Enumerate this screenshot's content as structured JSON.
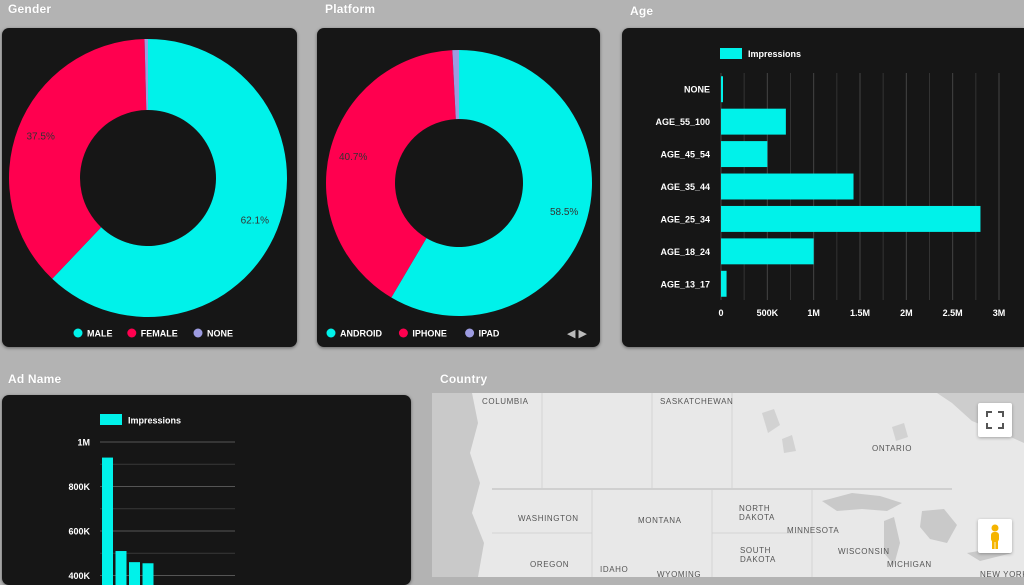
{
  "sections": {
    "gender": "Gender",
    "platform": "Platform",
    "age": "Age",
    "ad_name": "Ad Name",
    "country": "Country"
  },
  "colors": {
    "cyan": "#00f2ea",
    "pink": "#ff004f",
    "lavender": "#9c9be0",
    "card": "#161616"
  },
  "chart_data": [
    {
      "id": "gender",
      "type": "pie",
      "donut": true,
      "labels": [
        "MALE",
        "FEMALE",
        "NONE"
      ],
      "values": [
        62.1,
        37.5,
        0.4
      ],
      "data_labels": [
        "62.1%",
        "37.5%",
        ""
      ],
      "colors": [
        "#00f2ea",
        "#ff004f",
        "#9c9be0"
      ],
      "legend": "bottom"
    },
    {
      "id": "platform",
      "type": "pie",
      "donut": true,
      "labels": [
        "ANDROID",
        "IPHONE",
        "IPAD"
      ],
      "values": [
        58.5,
        40.7,
        0.8
      ],
      "data_labels": [
        "58.5%",
        "40.7%",
        ""
      ],
      "colors": [
        "#00f2ea",
        "#ff004f",
        "#9c9be0"
      ],
      "legend": "bottom",
      "pager": "◀ ▶"
    },
    {
      "id": "age",
      "type": "bar",
      "orientation": "horizontal",
      "categories": [
        "NONE",
        "AGE_55_100",
        "AGE_45_54",
        "AGE_35_44",
        "AGE_25_34",
        "AGE_18_24",
        "AGE_13_17"
      ],
      "series": [
        {
          "name": "Impressions",
          "values": [
            15000,
            700000,
            500000,
            1430000,
            2800000,
            1000000,
            60000
          ]
        }
      ],
      "xlim": [
        0,
        3000000
      ],
      "ticks": [
        0,
        500000,
        1000000,
        1500000,
        2000000,
        2500000,
        3000000
      ],
      "tick_labels": [
        "0",
        "500K",
        "1M",
        "1.5M",
        "2M",
        "2.5M",
        "3M"
      ],
      "grid": true,
      "legend": "top"
    },
    {
      "id": "ad_name",
      "type": "bar",
      "orientation": "vertical",
      "series": [
        {
          "name": "Impressions",
          "values": [
            930000,
            510000,
            460000,
            455000
          ]
        }
      ],
      "ylim": [
        0,
        1000000
      ],
      "ticks": [
        400000,
        600000,
        800000,
        1000000
      ],
      "tick_labels": [
        "400K",
        "600K",
        "800K",
        "1M"
      ],
      "grid": true,
      "legend": "top"
    }
  ],
  "map": {
    "labels": [
      {
        "text": "COLUMBIA"
      },
      {
        "text": "SASKATCHEWAN"
      },
      {
        "text": "ONTARIO"
      },
      {
        "text": "WASHINGTON"
      },
      {
        "text": "MONTANA"
      },
      {
        "text": "NORTH"
      },
      {
        "text": "DAKOTA"
      },
      {
        "text": "MINNESOTA"
      },
      {
        "text": "SOUTH"
      },
      {
        "text": "DAKOTA"
      },
      {
        "text": "WISCONSIN"
      },
      {
        "text": "MICHIGAN"
      },
      {
        "text": "OREGON"
      },
      {
        "text": "IDAHO"
      },
      {
        "text": "WYOMING"
      },
      {
        "text": "NEW YORK"
      }
    ]
  }
}
